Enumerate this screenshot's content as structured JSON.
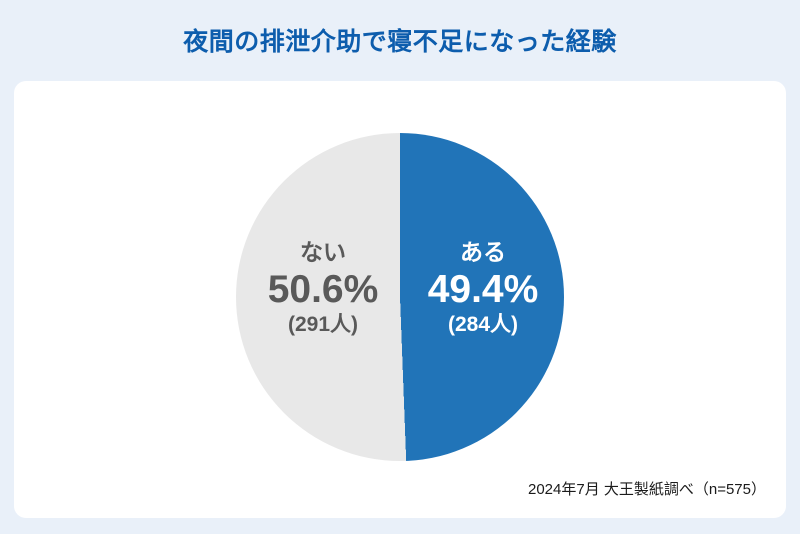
{
  "chart_data": {
    "type": "pie",
    "title": "夜間の排泄介助で寝不足になった経験",
    "unit": "%",
    "total_n": 575,
    "start_angle_deg": 0,
    "direction": "clockwise",
    "segments": [
      {
        "label": "ある",
        "value": 49.4,
        "pct_label": "49.4%",
        "count": 284,
        "count_label": "(284人)",
        "color": "#2174b8",
        "text_color": "#ffffff"
      },
      {
        "label": "ない",
        "value": 50.6,
        "pct_label": "50.6%",
        "count": 291,
        "count_label": "(291人)",
        "color": "#e8e8e8",
        "text_color": "#595959"
      }
    ],
    "source": "2024年7月 大王製紙調べ（n=575）"
  },
  "colors": {
    "page_background": "#e9f0f9",
    "card_background": "#ffffff",
    "title_text": "#0d5dad",
    "source_text": "#1b1b1b"
  }
}
